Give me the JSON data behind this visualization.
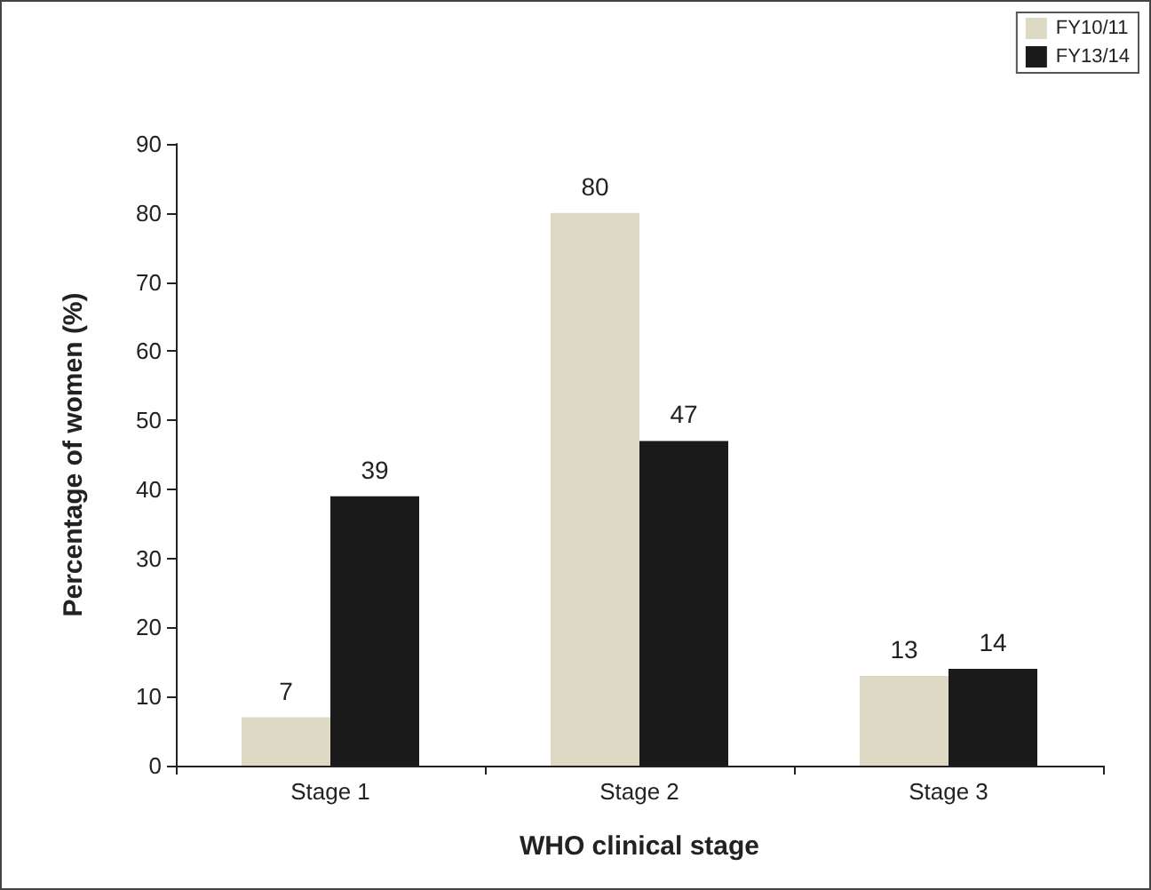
{
  "chart_data": {
    "type": "bar",
    "xlabel": "WHO clinical stage",
    "ylabel": "Percentage of women (%)",
    "categories": [
      "Stage 1",
      "Stage 2",
      "Stage 3"
    ],
    "series": [
      {
        "name": "FY10/11",
        "color": "#ddd9c4",
        "values": [
          7,
          80,
          13
        ]
      },
      {
        "name": "FY13/14",
        "color": "#1a1a1a",
        "values": [
          39,
          47,
          14
        ]
      }
    ],
    "ylim": [
      0,
      90
    ],
    "yticks": [
      0,
      10,
      20,
      30,
      40,
      50,
      60,
      70,
      80,
      90
    ],
    "grid": false,
    "legend": "top right",
    "data_labels": true
  }
}
